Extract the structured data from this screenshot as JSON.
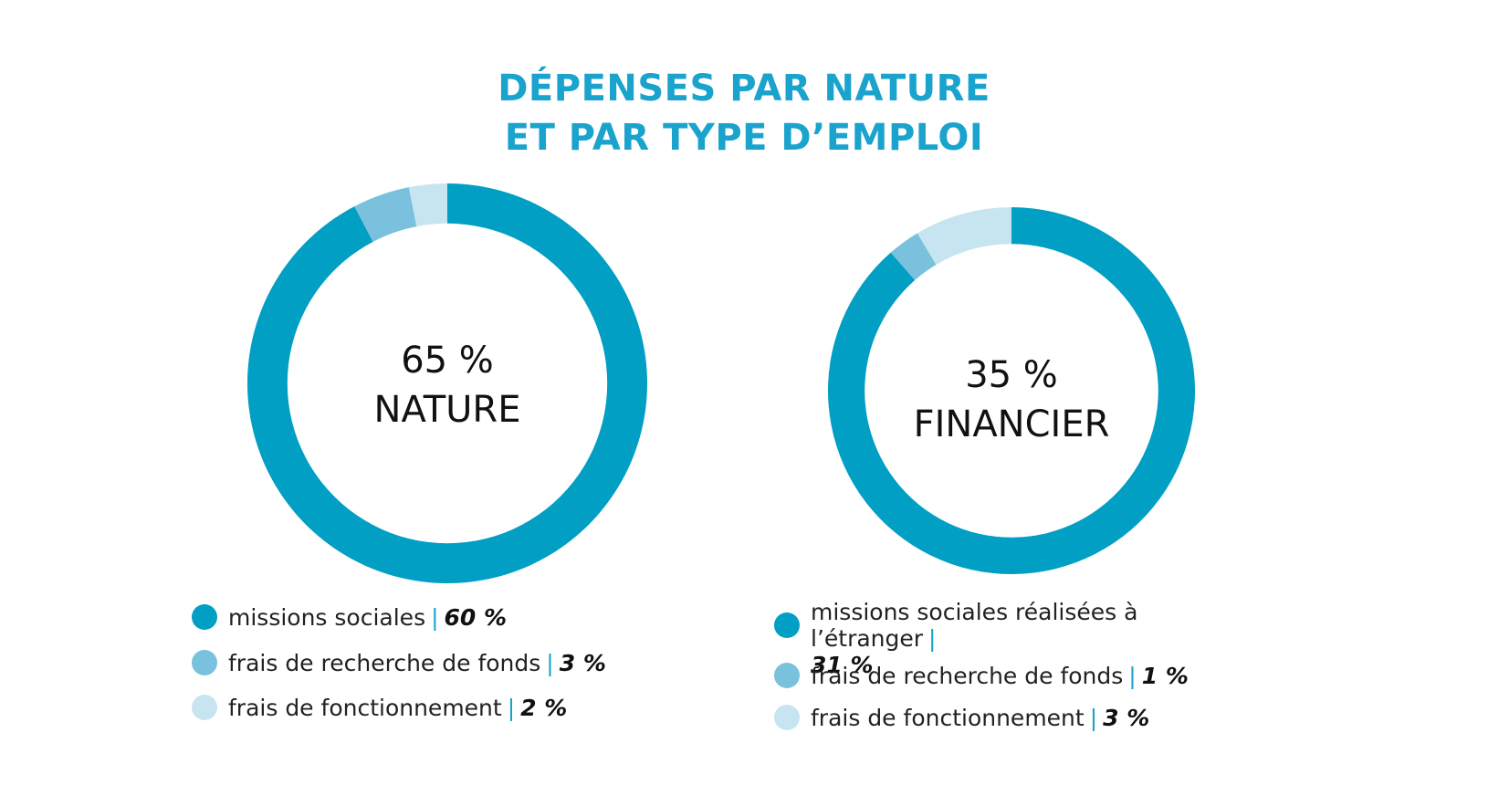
{
  "title": {
    "line1": "DÉPENSES PAR NATURE",
    "line2": "ET PAR TYPE D’EMPLOI"
  },
  "colors": {
    "title": "#1aa3cc",
    "dark": "#009fc3",
    "medium": "#79c1dc",
    "light": "#c6e5f1"
  },
  "chart_data": [
    {
      "type": "pie",
      "center": {
        "pct": "65 %",
        "label": "NATURE"
      },
      "slices": [
        {
          "name": "missions sociales",
          "value": 60,
          "display": "60 %"
        },
        {
          "name": "frais de recherche de fonds",
          "value": 3,
          "display": "3 %"
        },
        {
          "name": "frais de fonctionnement",
          "value": 2,
          "display": "2 %"
        }
      ]
    },
    {
      "type": "pie",
      "center": {
        "pct": "35 %",
        "label": "FINANCIER"
      },
      "slices": [
        {
          "name": "missions sociales réalisées à l’étranger",
          "value": 31,
          "display": "31 %"
        },
        {
          "name": "frais de recherche de fonds",
          "value": 1,
          "display": "1 %"
        },
        {
          "name": "frais de fonctionnement",
          "value": 3,
          "display": "3 %"
        }
      ]
    }
  ]
}
